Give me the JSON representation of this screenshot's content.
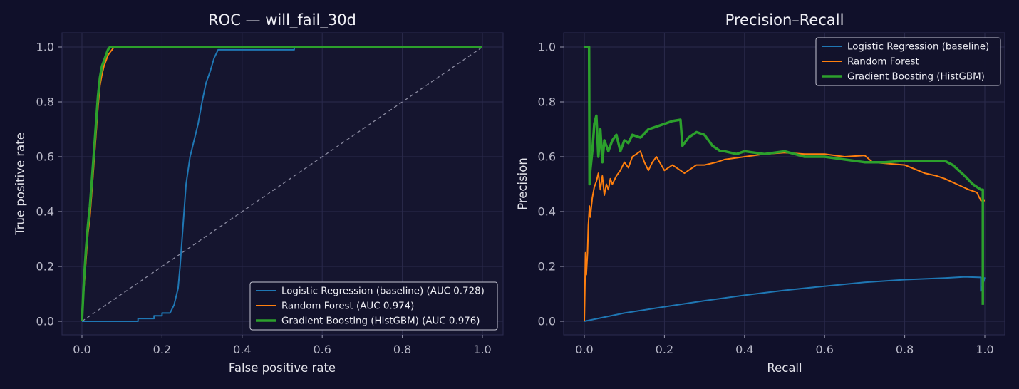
{
  "colors": {
    "background": "#10102a",
    "logistic": "#1f77b4",
    "random_forest": "#ff7f0e",
    "gradient_boosting": "#2ca02c",
    "diagonal": "#8a8aa0"
  },
  "chart_data": [
    {
      "type": "line",
      "title": "ROC — will_fail_30d",
      "xlabel": "False positive rate",
      "ylabel": "True positive rate",
      "xlim": [
        0,
        1
      ],
      "ylim": [
        0,
        1
      ],
      "xticks": [
        "0.0",
        "0.2",
        "0.4",
        "0.6",
        "0.8",
        "1.0"
      ],
      "yticks": [
        "0.0",
        "0.2",
        "0.4",
        "0.6",
        "0.8",
        "1.0"
      ],
      "grid": true,
      "legend_position": "lower-right",
      "reference_line": {
        "style": "dashed",
        "x": [
          0,
          1
        ],
        "y": [
          0,
          1
        ]
      },
      "series": [
        {
          "name": "Logistic Regression (baseline) (AUC 0.728)",
          "color_key": "logistic",
          "x": [
            0,
            0.14,
            0.14,
            0.18,
            0.18,
            0.2,
            0.2,
            0.22,
            0.23,
            0.24,
            0.245,
            0.25,
            0.255,
            0.26,
            0.27,
            0.28,
            0.29,
            0.3,
            0.31,
            0.32,
            0.33,
            0.34,
            0.35,
            0.36,
            0.38,
            0.45,
            0.53,
            0.53,
            1.0
          ],
          "y": [
            0,
            0,
            0.01,
            0.01,
            0.02,
            0.02,
            0.03,
            0.03,
            0.06,
            0.12,
            0.2,
            0.3,
            0.4,
            0.5,
            0.6,
            0.66,
            0.72,
            0.8,
            0.87,
            0.91,
            0.96,
            0.99,
            0.99,
            0.99,
            0.99,
            0.99,
            0.99,
            1.0,
            1.0
          ]
        },
        {
          "name": "Random Forest (AUC 0.974)",
          "color_key": "random_forest",
          "x": [
            0,
            0.005,
            0.01,
            0.015,
            0.02,
            0.025,
            0.03,
            0.035,
            0.04,
            0.045,
            0.05,
            0.055,
            0.06,
            0.065,
            0.07,
            0.075,
            0.08,
            0.1,
            0.2,
            0.5,
            1.0
          ],
          "y": [
            0,
            0.12,
            0.22,
            0.32,
            0.38,
            0.48,
            0.58,
            0.68,
            0.78,
            0.86,
            0.9,
            0.93,
            0.95,
            0.97,
            0.98,
            0.99,
            1.0,
            1.0,
            1.0,
            1.0,
            1.0
          ]
        },
        {
          "name": "Gradient Boosting (HistGBM) (AUC 0.976)",
          "color_key": "gradient_boosting",
          "x": [
            0,
            0.005,
            0.01,
            0.015,
            0.02,
            0.025,
            0.03,
            0.035,
            0.04,
            0.045,
            0.05,
            0.055,
            0.06,
            0.065,
            0.07,
            0.1,
            0.2,
            0.5,
            1.0
          ],
          "y": [
            0,
            0.15,
            0.26,
            0.35,
            0.42,
            0.52,
            0.62,
            0.72,
            0.82,
            0.89,
            0.93,
            0.95,
            0.97,
            0.99,
            1.0,
            1.0,
            1.0,
            1.0,
            1.0
          ]
        }
      ]
    },
    {
      "type": "line",
      "title": "Precision–Recall",
      "xlabel": "Recall",
      "ylabel": "Precision",
      "xlim": [
        0,
        1
      ],
      "ylim": [
        0,
        1
      ],
      "xticks": [
        "0.0",
        "0.2",
        "0.4",
        "0.6",
        "0.8",
        "1.0"
      ],
      "yticks": [
        "0.0",
        "0.2",
        "0.4",
        "0.6",
        "0.8",
        "1.0"
      ],
      "grid": true,
      "legend_position": "upper-right",
      "series": [
        {
          "name": "Logistic Regression (baseline)",
          "color_key": "logistic",
          "x": [
            0,
            0.1,
            0.2,
            0.3,
            0.4,
            0.5,
            0.6,
            0.7,
            0.8,
            0.9,
            0.95,
            0.99,
            0.99,
            1.0
          ],
          "y": [
            0,
            0.03,
            0.053,
            0.075,
            0.095,
            0.113,
            0.128,
            0.142,
            0.152,
            0.158,
            0.162,
            0.16,
            0.11,
            0.16
          ]
        },
        {
          "name": "Random Forest",
          "color_key": "random_forest",
          "x": [
            0,
            0.003,
            0.005,
            0.008,
            0.01,
            0.013,
            0.015,
            0.02,
            0.025,
            0.03,
            0.035,
            0.04,
            0.045,
            0.05,
            0.055,
            0.06,
            0.065,
            0.07,
            0.08,
            0.09,
            0.1,
            0.11,
            0.12,
            0.13,
            0.14,
            0.15,
            0.16,
            0.17,
            0.18,
            0.2,
            0.22,
            0.25,
            0.28,
            0.3,
            0.33,
            0.35,
            0.4,
            0.45,
            0.5,
            0.55,
            0.6,
            0.65,
            0.7,
            0.72,
            0.8,
            0.85,
            0.88,
            0.9,
            0.93,
            0.96,
            0.98,
            0.99,
            1.0
          ],
          "y": [
            0,
            0.25,
            0.17,
            0.25,
            0.35,
            0.42,
            0.38,
            0.45,
            0.49,
            0.51,
            0.54,
            0.48,
            0.53,
            0.46,
            0.5,
            0.48,
            0.52,
            0.5,
            0.53,
            0.55,
            0.58,
            0.56,
            0.6,
            0.61,
            0.62,
            0.58,
            0.55,
            0.58,
            0.6,
            0.55,
            0.57,
            0.54,
            0.57,
            0.57,
            0.58,
            0.59,
            0.6,
            0.61,
            0.615,
            0.61,
            0.61,
            0.6,
            0.605,
            0.58,
            0.57,
            0.54,
            0.53,
            0.52,
            0.5,
            0.48,
            0.47,
            0.44,
            0.44
          ]
        },
        {
          "name": "Gradient Boosting (HistGBM)",
          "color_key": "gradient_boosting",
          "x": [
            0,
            0.002,
            0.004,
            0.006,
            0.008,
            0.01,
            0.012,
            0.013,
            0.015,
            0.02,
            0.025,
            0.03,
            0.035,
            0.04,
            0.045,
            0.05,
            0.06,
            0.07,
            0.08,
            0.09,
            0.1,
            0.11,
            0.12,
            0.14,
            0.16,
            0.18,
            0.2,
            0.22,
            0.24,
            0.245,
            0.26,
            0.28,
            0.3,
            0.32,
            0.34,
            0.35,
            0.38,
            0.4,
            0.45,
            0.5,
            0.55,
            0.6,
            0.65,
            0.7,
            0.75,
            0.8,
            0.85,
            0.9,
            0.92,
            0.95,
            0.97,
            0.99,
            0.995,
            0.995
          ],
          "y": [
            1.0,
            1.0,
            1.0,
            1.0,
            1.0,
            1.0,
            1.0,
            0.5,
            0.55,
            0.62,
            0.72,
            0.75,
            0.6,
            0.7,
            0.58,
            0.66,
            0.62,
            0.66,
            0.68,
            0.62,
            0.66,
            0.65,
            0.68,
            0.67,
            0.7,
            0.71,
            0.72,
            0.73,
            0.735,
            0.64,
            0.67,
            0.69,
            0.68,
            0.64,
            0.62,
            0.62,
            0.61,
            0.62,
            0.61,
            0.62,
            0.6,
            0.6,
            0.59,
            0.58,
            0.58,
            0.585,
            0.585,
            0.585,
            0.57,
            0.53,
            0.5,
            0.48,
            0.48,
            0.06
          ]
        }
      ]
    }
  ]
}
